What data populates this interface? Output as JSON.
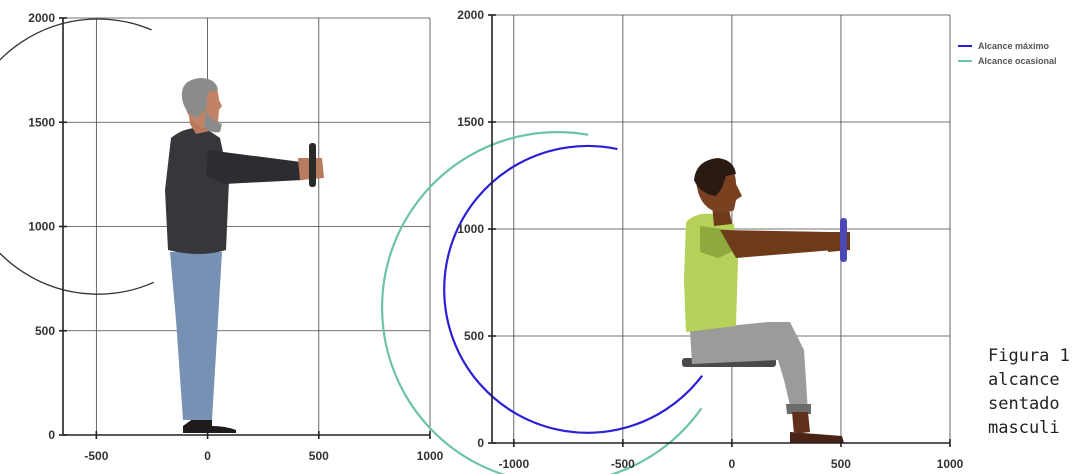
{
  "chart_data": [
    {
      "type": "line",
      "xlim": [
        -650,
        1000
      ],
      "ylim": [
        0,
        2000
      ],
      "x_ticks": [
        "-500",
        "0",
        "500",
        "1000"
      ],
      "y_ticks": [
        "0",
        "500",
        "1000",
        "1500",
        "2000"
      ],
      "grid": true,
      "series": [
        {
          "color": "#333333",
          "center": [
            0,
            1340
          ],
          "radius": 660,
          "start_deg": 246,
          "end_deg": 473
        }
      ]
    },
    {
      "type": "line",
      "xlim": [
        -1100,
        1000
      ],
      "ylim": [
        0,
        2000
      ],
      "x_ticks": [
        "-1000",
        "-500",
        "0",
        "500",
        "1000"
      ],
      "y_ticks": [
        "0",
        "500",
        "1000",
        "1500",
        "2000"
      ],
      "grid": true,
      "legend_position": "top-right",
      "series": [
        {
          "name": "Alcance máximo",
          "color": "#2b1fd6",
          "center": [
            0,
            970
          ],
          "radius": 670,
          "start_deg": 217,
          "end_deg": 462
        },
        {
          "name": "Alcance ocasional",
          "color": "#6cc4a4",
          "center": [
            0,
            970
          ],
          "radius": 820,
          "start_deg": 215,
          "end_deg": 460
        }
      ]
    }
  ],
  "caption": "Figura 1\nalcance\nsentado\nmasculi"
}
